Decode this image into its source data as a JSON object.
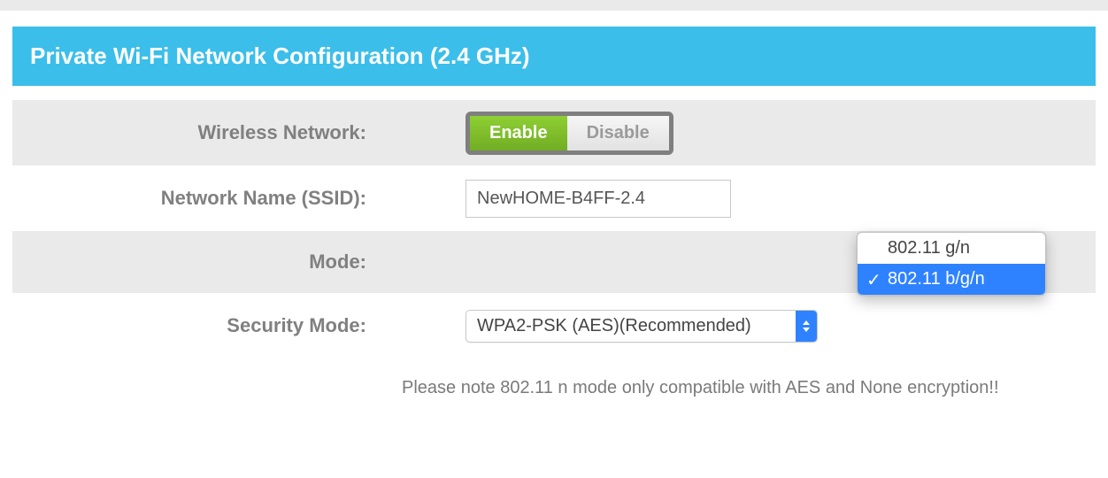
{
  "header": {
    "title": "Private Wi-Fi Network Configuration (2.4 GHz)"
  },
  "colors": {
    "banner_bg": "#3bbeea",
    "enable_bg": "#80c02a",
    "disable_bg": "#eeeeee",
    "row_gray": "#eaeaea",
    "select_accent": "#2f82ff",
    "text_gray": "#808080"
  },
  "fields": {
    "wireless": {
      "label": "Wireless Network:",
      "enable_label": "Enable",
      "disable_label": "Disable",
      "value": "Enable"
    },
    "ssid": {
      "label": "Network Name (SSID):",
      "value": "NewHOME-B4FF-2.4"
    },
    "mode": {
      "label": "Mode:",
      "options": [
        "802.11 g/n",
        "802.11 b/g/n"
      ],
      "selected": "802.11 b/g/n"
    },
    "security": {
      "label": "Security Mode:",
      "value": "WPA2-PSK (AES)(Recommended)"
    }
  },
  "note": "Please note 802.11 n mode only compatible with AES and None encryption!!"
}
